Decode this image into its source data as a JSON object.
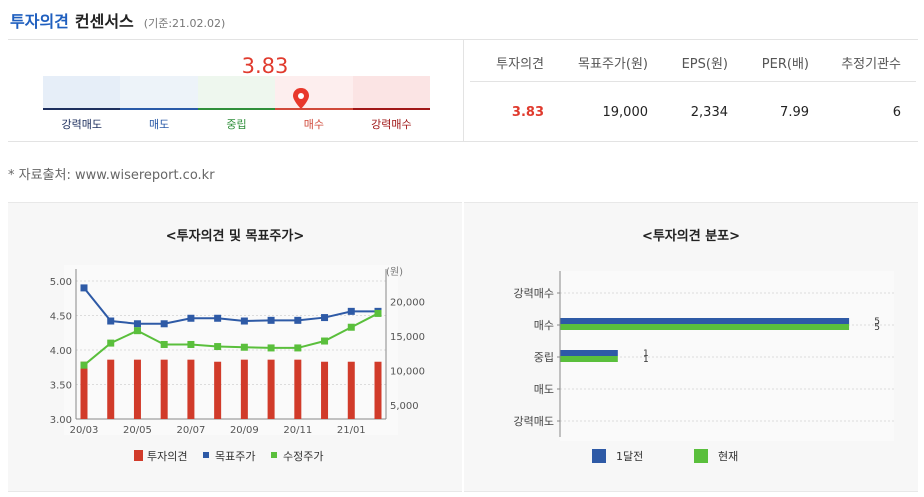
{
  "header": {
    "title_primary": "투자의견",
    "title_secondary": "컨센서스",
    "basis": "(기준:21.02.02)"
  },
  "gauge": {
    "score": "3.83",
    "score_value": 3.83,
    "labels": [
      "강력매도",
      "매도",
      "중립",
      "매수",
      "강력매수"
    ],
    "label_colors": [
      "#1d2f5e",
      "#2a5aa8",
      "#2f8f3a",
      "#d04a3a",
      "#a01818"
    ],
    "segment_colors": [
      "#e6eef8",
      "#edf3f9",
      "#eef7ee",
      "#fdeeee",
      "#fbe4e4"
    ]
  },
  "summary": {
    "headers": [
      "투자의견",
      "목표주가(원)",
      "EPS(원)",
      "PER(배)",
      "추정기관수"
    ],
    "values": [
      "3.83",
      "19,000",
      "2,334",
      "7.99",
      "6"
    ]
  },
  "source": "* 자료출처: www.wisereport.co.kr",
  "chart_data": [
    {
      "type": "bar",
      "title": "<투자의견 및 목표주가>",
      "x": [
        "20/03",
        "20/04",
        "20/05",
        "20/06",
        "20/07",
        "20/08",
        "20/09",
        "20/10",
        "20/11",
        "20/12",
        "21/01",
        "21/02"
      ],
      "x_tick_labels": [
        "20/03",
        "20/05",
        "20/07",
        "20/09",
        "20/11",
        "21/01"
      ],
      "y_left_ticks": [
        "5.00",
        "4.50",
        "4.00",
        "3.50",
        "3.00"
      ],
      "y_right_ticks": [
        "20,000",
        "15,000",
        "10,000",
        "5,000"
      ],
      "y_right_unit": "(원)",
      "ylim": [
        3.0,
        5.0
      ],
      "y2lim": [
        3000,
        23000
      ],
      "series": [
        {
          "name": "투자의견",
          "kind": "bar",
          "axis": "left",
          "color": "#d13b2a",
          "values": [
            3.83,
            3.86,
            3.86,
            3.86,
            3.86,
            3.83,
            3.86,
            3.86,
            3.86,
            3.83,
            3.83,
            3.83
          ]
        },
        {
          "name": "목표주가",
          "kind": "line",
          "axis": "right",
          "color": "#2e5aa6",
          "values": [
            22000,
            17200,
            16800,
            16800,
            17600,
            17600,
            17200,
            17300,
            17300,
            17700,
            18600,
            18600
          ]
        },
        {
          "name": "수정주가",
          "kind": "line",
          "axis": "right",
          "color": "#5abf3c",
          "values": [
            10800,
            14000,
            15800,
            13800,
            13800,
            13500,
            13400,
            13300,
            13300,
            14300,
            16300,
            18300
          ]
        }
      ],
      "legend_position": "bottom"
    },
    {
      "type": "bar",
      "title": "<투자의견 분포>",
      "orientation": "horizontal",
      "categories": [
        "강력매수",
        "매수",
        "중립",
        "매도",
        "강력매도"
      ],
      "xlim": [
        0,
        5.5
      ],
      "series": [
        {
          "name": "1달전",
          "color": "#2e5aa6",
          "values": [
            0,
            5,
            1,
            0,
            0
          ]
        },
        {
          "name": "현재",
          "color": "#5abf3c",
          "values": [
            0,
            5,
            1,
            0,
            0
          ]
        }
      ],
      "data_labels": {
        "1": [
          "5",
          "5"
        ],
        "2": [
          "1",
          "1"
        ]
      },
      "legend_position": "bottom"
    }
  ]
}
